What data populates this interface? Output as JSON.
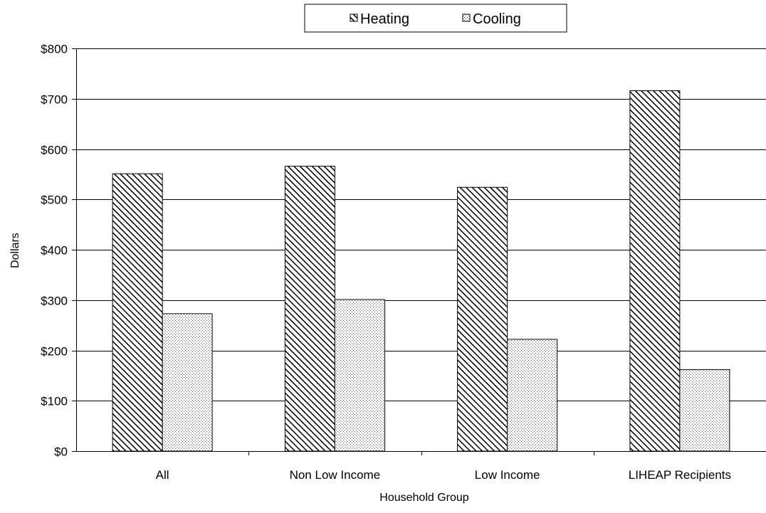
{
  "chart_data": {
    "type": "bar",
    "categories": [
      "All",
      "Non  Low Income",
      "Low Income",
      "LIHEAP Recipients"
    ],
    "series": [
      {
        "name": "Heating",
        "values": [
          551,
          566,
          524,
          716
        ],
        "pattern": "diagonal-hatch"
      },
      {
        "name": "Cooling",
        "values": [
          273,
          301,
          222,
          162
        ],
        "pattern": "dotted"
      }
    ],
    "xlabel": "Household Group",
    "ylabel": "Dollars",
    "ylim": [
      0,
      800
    ],
    "yticks": [
      0,
      100,
      200,
      300,
      400,
      500,
      600,
      700,
      800
    ],
    "ytick_labels": [
      "$0",
      "$100",
      "$200",
      "$300",
      "$400",
      "$500",
      "$600",
      "$700",
      "$800"
    ],
    "grid": true,
    "legend_position": "top-center",
    "colors": {
      "bar_outline": "#000000",
      "hatch": "#000000",
      "dots": "#444444",
      "background": "#ffffff"
    }
  }
}
